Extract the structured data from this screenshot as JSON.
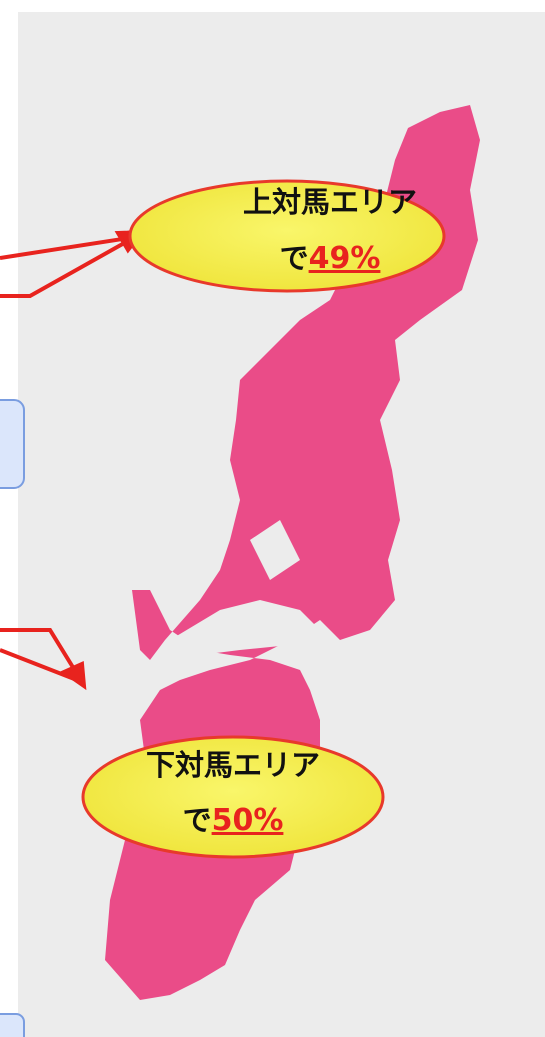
{
  "callouts": [
    {
      "area": "上対馬エリア",
      "prefix": "で",
      "share": "49%"
    },
    {
      "area": "下対馬エリア",
      "prefix": "で",
      "share": "50%"
    }
  ]
}
